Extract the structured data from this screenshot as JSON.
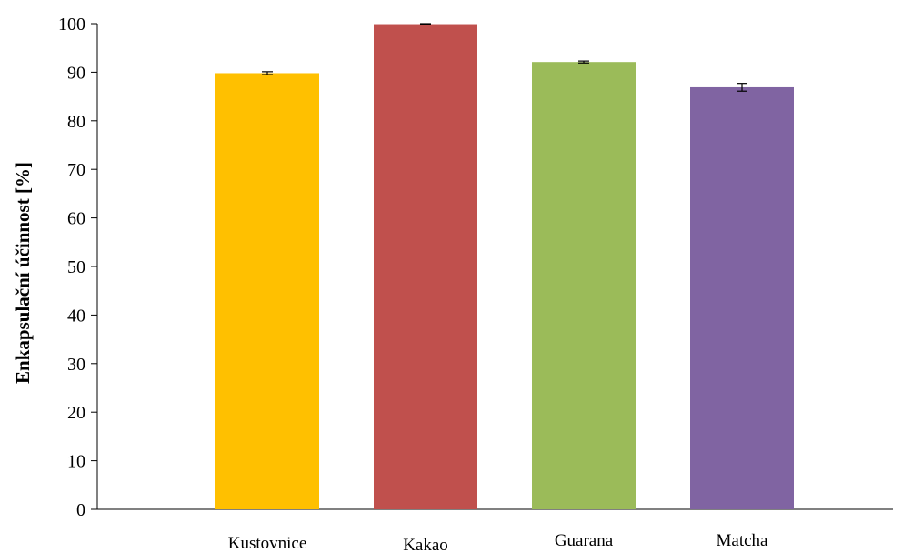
{
  "chart_data": {
    "type": "bar",
    "title": "",
    "xlabel": "",
    "ylabel": "Enkapsulační účinnost [%]",
    "ylim": [
      0,
      100
    ],
    "yticks": [
      0,
      10,
      20,
      30,
      40,
      50,
      60,
      70,
      80,
      90,
      100
    ],
    "grid": false,
    "legend": "none",
    "categories": [
      "Kustovnice",
      "Kakao",
      "Guarana",
      "Matcha"
    ],
    "values": [
      89.8,
      99.9,
      92.1,
      86.9
    ],
    "errors": [
      0.3,
      0.1,
      0.2,
      0.8
    ],
    "colors": [
      "#FFC000",
      "#C0504D",
      "#9BBB59",
      "#8064A2"
    ]
  }
}
